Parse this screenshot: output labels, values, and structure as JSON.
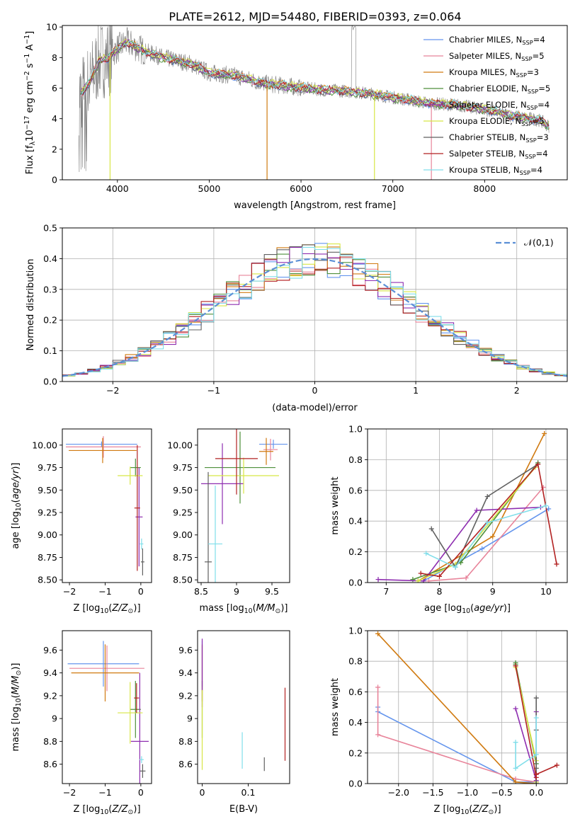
{
  "figure_title": "PLATE=2612, MJD=54480, FIBERID=0393, z=0.064",
  "colors": [
    "#6495ED",
    "#E8849A",
    "#D07A10",
    "#4E8F3A",
    "#8E2DB0",
    "#D8E646",
    "#606060",
    "#B22222",
    "#80DEEA"
  ],
  "chart_data": [
    {
      "type": "line",
      "name": "spectrum",
      "xlabel": "wavelength [Angstrom, rest frame]",
      "ylabel": "Flux [f_λ 10^-17 erg cm^-2 s^-1 A^-1]",
      "xlim": [
        3400,
        8900
      ],
      "ylim": [
        0,
        10.1
      ],
      "xticks": [
        4000,
        5000,
        6000,
        7000,
        8000
      ],
      "yticks": [
        0,
        2,
        4,
        6,
        8,
        10
      ],
      "grid": false,
      "legend_position": "upper right",
      "series": [
        {
          "name": "Chabrier MILES, N_SSP=4"
        },
        {
          "name": "Salpeter MILES, N_SSP=5"
        },
        {
          "name": "Kroupa MILES, N_SSP=3"
        },
        {
          "name": "Chabrier ELODIE, N_SSP=5"
        },
        {
          "name": "Salpeter ELODIE, N_SSP=4"
        },
        {
          "name": "Kroupa ELODIE, N_SSP=5"
        },
        {
          "name": "Chabrier STELIB, N_SSP=3"
        },
        {
          "name": "Salpeter STELIB, N_SSP=4"
        },
        {
          "name": "Kroupa STELIB, N_SSP=4"
        }
      ],
      "data_trend": {
        "x": [
          3580,
          3700,
          3800,
          3900,
          4000,
          4100,
          4300,
          4500,
          4800,
          5000,
          5300,
          5600,
          5900,
          6200,
          6500,
          6800,
          7100,
          7400,
          7700,
          8000,
          8300,
          8600,
          8700
        ],
        "y": [
          5.5,
          6.4,
          7.8,
          8.0,
          8.6,
          9.0,
          8.4,
          8.0,
          7.6,
          7.0,
          6.8,
          6.3,
          6.1,
          5.9,
          5.8,
          5.6,
          5.3,
          5.0,
          4.9,
          4.6,
          4.2,
          3.9,
          3.5
        ]
      }
    },
    {
      "type": "step",
      "name": "residual-histograms",
      "xlabel": "(data-model)/error",
      "ylabel": "Normed distribution",
      "xlim": [
        -2.5,
        2.5
      ],
      "ylim": [
        0,
        0.5
      ],
      "xticks": [
        -2,
        -1,
        0,
        1,
        2
      ],
      "yticks": [
        0.0,
        0.1,
        0.2,
        0.3,
        0.4,
        0.5
      ],
      "grid": true,
      "legend_position": "upper right",
      "reference_curve": {
        "label": "𝒩(0,1)",
        "mean": 0,
        "sigma": 1,
        "color": "#5B8FD6"
      },
      "bins": 40
    },
    {
      "type": "scatter",
      "name": "Z-vs-age",
      "xlabel": "Z [log10(Z/Z⊙)]",
      "ylabel": "age  [log10(age/yr)]",
      "xlim": [
        -2.2,
        0.3
      ],
      "ylim": [
        8.47,
        10.18
      ],
      "xticks": [
        -2,
        -1,
        0
      ],
      "yticks": [
        8.5,
        8.75,
        9.0,
        9.25,
        9.5,
        9.75,
        10.0
      ],
      "ytick_labels": [
        "8.50",
        "8.75",
        "9.00",
        "9.25",
        "9.50",
        "9.75",
        "10.00"
      ],
      "points": [
        {
          "x": -1.1,
          "y": 10.01,
          "xerr": 1.0,
          "yerr": 0.03,
          "c": 0
        },
        {
          "x": -1.05,
          "y": 9.98,
          "xerr": 1.05,
          "yerr": 0.12,
          "c": 1
        },
        {
          "x": -1.07,
          "y": 9.94,
          "xerr": 0.95,
          "yerr": 0.14,
          "c": 2
        },
        {
          "x": -0.15,
          "y": 9.75,
          "xerr": 0.15,
          "yerr": 0.1,
          "c": 3
        },
        {
          "x": -0.05,
          "y": 9.2,
          "xerr": 0.1,
          "yerr": 0.55,
          "c": 4
        },
        {
          "x": -0.3,
          "y": 9.66,
          "xerr": 0.35,
          "yerr": 0.1,
          "c": 5
        },
        {
          "x": 0.05,
          "y": 8.7,
          "xerr": 0.05,
          "yerr": 0.15,
          "c": 6
        },
        {
          "x": -0.1,
          "y": 9.3,
          "xerr": 0.08,
          "yerr": 0.7,
          "c": 7
        },
        {
          "x": 0.02,
          "y": 8.9,
          "xerr": 0.05,
          "yerr": 0.06,
          "c": 8
        }
      ]
    },
    {
      "type": "scatter",
      "name": "mass-vs-age",
      "xlabel": "mass [log10(M/M⊙)]",
      "ylabel": "",
      "xlim": [
        8.45,
        9.75
      ],
      "ylim": [
        8.47,
        10.18
      ],
      "xticks": [
        8.5,
        9.0,
        9.5
      ],
      "yticks": [
        8.5,
        8.75,
        9.0,
        9.25,
        9.5,
        9.75,
        10.0
      ],
      "ytick_labels": [
        "8.50",
        "8.75",
        "9.00",
        "9.25",
        "9.50",
        "9.75",
        "10.00"
      ],
      "points": [
        {
          "x": 9.52,
          "y": 10.01,
          "xerr": 0.2,
          "yerr": 0.05,
          "c": 0
        },
        {
          "x": 9.48,
          "y": 9.95,
          "xerr": 0.1,
          "yerr": 0.12,
          "c": 1
        },
        {
          "x": 9.42,
          "y": 9.93,
          "xerr": 0.1,
          "yerr": 0.15,
          "c": 2
        },
        {
          "x": 9.05,
          "y": 9.75,
          "xerr": 0.5,
          "yerr": 0.4,
          "c": 3
        },
        {
          "x": 8.8,
          "y": 9.57,
          "xerr": 0.3,
          "yerr": 0.45,
          "c": 4
        },
        {
          "x": 9.1,
          "y": 9.66,
          "xerr": 0.5,
          "yerr": 0.2,
          "c": 5
        },
        {
          "x": 8.6,
          "y": 8.7,
          "xerr": 0.05,
          "yerr": 1.0,
          "c": 6
        },
        {
          "x": 9.0,
          "y": 9.85,
          "xerr": 0.3,
          "yerr": 0.4,
          "c": 7
        },
        {
          "x": 8.7,
          "y": 8.9,
          "xerr": 0.1,
          "yerr": 0.65,
          "c": 8
        }
      ]
    },
    {
      "type": "line",
      "name": "age-vs-mass-weight",
      "xlabel": "age  [log10(age/yr)]",
      "ylabel": "mass weight",
      "xlim": [
        6.65,
        10.4
      ],
      "ylim": [
        0,
        1.0
      ],
      "xticks": [
        7,
        8,
        9,
        10
      ],
      "yticks": [
        0.0,
        0.2,
        0.4,
        0.6,
        0.8,
        1.0
      ],
      "series": [
        {
          "c": 0,
          "x": [
            7.7,
            8.8,
            10.05
          ],
          "y": [
            0.01,
            0.22,
            0.48
          ]
        },
        {
          "c": 1,
          "x": [
            7.8,
            8.5,
            9.95
          ],
          "y": [
            0.01,
            0.03,
            0.62
          ]
        },
        {
          "c": 2,
          "x": [
            7.6,
            9.0,
            9.97
          ],
          "y": [
            0.01,
            0.3,
            0.97
          ]
        },
        {
          "c": 3,
          "x": [
            7.5,
            8.4,
            9.85
          ],
          "y": [
            0.02,
            0.13,
            0.78
          ]
        },
        {
          "c": 4,
          "x": [
            6.85,
            7.7,
            8.7,
            9.9
          ],
          "y": [
            0.02,
            0.01,
            0.47,
            0.49
          ]
        },
        {
          "c": 5,
          "x": [
            7.6,
            8.3,
            9.8
          ],
          "y": [
            0.01,
            0.12,
            0.75
          ]
        },
        {
          "c": 6,
          "x": [
            7.85,
            8.3,
            8.9,
            9.85
          ],
          "y": [
            0.35,
            0.1,
            0.56,
            0.77
          ]
        },
        {
          "c": 7,
          "x": [
            7.65,
            8.0,
            9.85,
            10.2
          ],
          "y": [
            0.06,
            0.04,
            0.77,
            0.12
          ]
        },
        {
          "c": 8,
          "x": [
            7.75,
            8.3,
            8.9,
            10.0
          ],
          "y": [
            0.19,
            0.1,
            0.39,
            0.5
          ]
        }
      ]
    },
    {
      "type": "scatter",
      "name": "Z-vs-mass",
      "xlabel": "Z [log10(Z/Z⊙)]",
      "ylabel": "mass [log10(M/M⊙)]",
      "xlim": [
        -2.2,
        0.3
      ],
      "ylim": [
        8.43,
        9.77
      ],
      "xticks": [
        -2,
        -1,
        0
      ],
      "yticks": [
        8.6,
        8.8,
        9.0,
        9.2,
        9.4,
        9.6
      ],
      "points": [
        {
          "x": -1.05,
          "y": 9.48,
          "xerr": 1.0,
          "yerr": 0.2,
          "c": 0
        },
        {
          "x": -0.95,
          "y": 9.44,
          "xerr": 1.05,
          "yerr": 0.2,
          "c": 1
        },
        {
          "x": -1.0,
          "y": 9.4,
          "xerr": 0.95,
          "yerr": 0.25,
          "c": 2
        },
        {
          "x": -0.15,
          "y": 9.08,
          "xerr": 0.15,
          "yerr": 0.25,
          "c": 3
        },
        {
          "x": -0.03,
          "y": 8.8,
          "xerr": 0.25,
          "yerr": 0.6,
          "c": 4
        },
        {
          "x": -0.3,
          "y": 9.05,
          "xerr": 0.35,
          "yerr": 0.27,
          "c": 5
        },
        {
          "x": 0.05,
          "y": 8.54,
          "xerr": 0.08,
          "yerr": 0.06,
          "c": 6
        },
        {
          "x": -0.12,
          "y": 9.18,
          "xerr": 0.07,
          "yerr": 0.13,
          "c": 7
        },
        {
          "x": 0.02,
          "y": 8.64,
          "xerr": 0.06,
          "yerr": 0.03,
          "c": 8
        }
      ]
    },
    {
      "type": "scatter",
      "name": "EBV-vs-mass",
      "xlabel": "E(B-V)",
      "ylabel": "",
      "xlim": [
        -0.01,
        0.19
      ],
      "ylim": [
        8.43,
        9.77
      ],
      "xticks": [
        0.0,
        0.1
      ],
      "yticks": [
        8.6,
        8.8,
        9.0,
        9.2,
        9.4,
        9.6
      ],
      "points": [
        {
          "x": 0.0,
          "y": 9.48,
          "yerr": 0.2,
          "c": 0
        },
        {
          "x": 0.0,
          "y": 9.44,
          "yerr": 0.2,
          "c": 1
        },
        {
          "x": 0.0,
          "y": 9.4,
          "yerr": 0.25,
          "c": 2
        },
        {
          "x": 0.0,
          "y": 9.08,
          "yerr": 0.25,
          "c": 3
        },
        {
          "x": 0.0,
          "y": 9.4,
          "yerr": 0.3,
          "c": 4
        },
        {
          "x": 0.0,
          "y": 8.9,
          "yerr": 0.35,
          "c": 5
        },
        {
          "x": 0.135,
          "y": 8.6,
          "yerr": 0.06,
          "c": 6
        },
        {
          "x": 0.18,
          "y": 8.95,
          "yerr": 0.32,
          "c": 7
        },
        {
          "x": 0.087,
          "y": 8.72,
          "yerr": 0.16,
          "c": 8
        }
      ]
    },
    {
      "type": "line",
      "name": "Z-vs-mass-weight",
      "xlabel": "Z [log10(Z/Z⊙)]",
      "ylabel": "mass weight",
      "xlim": [
        -2.45,
        0.45
      ],
      "ylim": [
        0,
        1.0
      ],
      "xticks": [
        -2.0,
        -1.5,
        -1.0,
        -0.5,
        0.0
      ],
      "xtick_labels": [
        "−2.0",
        "−1.5",
        "−1.0",
        "−0.5",
        "0.0"
      ],
      "yticks": [
        0.0,
        0.2,
        0.4,
        0.6,
        0.8,
        1.0
      ],
      "series": [
        {
          "c": 0,
          "x": [
            -2.3,
            -2.3,
            -0.3,
            0.0
          ],
          "y": [
            0.5,
            0.47,
            0.01,
            0.01
          ]
        },
        {
          "c": 1,
          "x": [
            -2.3,
            -2.3,
            -0.3,
            0.0
          ],
          "y": [
            0.63,
            0.32,
            0.03,
            0.01
          ]
        },
        {
          "c": 2,
          "x": [
            -2.3,
            -0.3,
            0.0
          ],
          "y": [
            0.98,
            0.01,
            0.0
          ]
        },
        {
          "c": 3,
          "x": [
            -0.3,
            -0.3,
            0.0,
            0.0
          ],
          "y": [
            0.79,
            0.78,
            0.13,
            0.0
          ]
        },
        {
          "c": 4,
          "x": [
            -0.3,
            0.0,
            0.0,
            0.0
          ],
          "y": [
            0.49,
            0.02,
            0.47,
            0.01
          ]
        },
        {
          "c": 5,
          "x": [
            -0.3,
            0.0,
            0.0,
            0.0,
            0.0
          ],
          "y": [
            0.76,
            0.15,
            0.01,
            0.1,
            0.0
          ]
        },
        {
          "c": 6,
          "x": [
            0.0,
            0.0,
            0.0,
            0.0
          ],
          "y": [
            0.56,
            0.35,
            0.1,
            0.0
          ]
        },
        {
          "c": 7,
          "x": [
            -0.3,
            0.0,
            0.0,
            0.3
          ],
          "y": [
            0.77,
            0.04,
            0.06,
            0.12
          ]
        },
        {
          "c": 8,
          "x": [
            -0.3,
            -0.3,
            0.0,
            0.0
          ],
          "y": [
            0.27,
            0.1,
            0.19,
            0.43
          ]
        }
      ]
    }
  ]
}
